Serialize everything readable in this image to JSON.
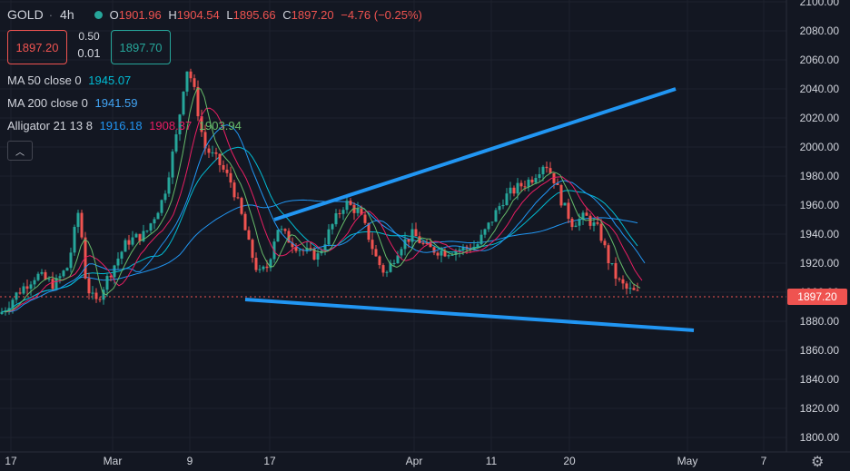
{
  "header": {
    "symbol": "GOLD",
    "timeframe": "4h",
    "open_label": "O",
    "open": "1901.96",
    "high_label": "H",
    "high": "1904.54",
    "low_label": "L",
    "low": "1895.66",
    "close_label": "C",
    "close": "1897.20",
    "change": "−4.76 (−0.25%)"
  },
  "trade": {
    "sell": "1897.20",
    "spread_top": "0.50",
    "spread_bottom": "0.01",
    "buy": "1897.70"
  },
  "indicators": [
    {
      "name": "MA 50 close 0",
      "values": [
        "1945.07"
      ],
      "colors": [
        "#00bcd4"
      ]
    },
    {
      "name": "MA 200 close 0",
      "values": [
        "1941.59"
      ],
      "colors": [
        "#42a5f5"
      ]
    },
    {
      "name": "Alligator 21 13 8",
      "values": [
        "1916.18",
        "1908.37",
        "1903.94"
      ],
      "colors": [
        "#2196f3",
        "#e91e63",
        "#66bb6a"
      ]
    }
  ],
  "price_axis": [
    "2100.00",
    "2080.00",
    "2060.00",
    "2040.00",
    "2020.00",
    "2000.00",
    "1980.00",
    "1960.00",
    "1940.00",
    "1920.00",
    "1900.00",
    "1880.00",
    "1860.00",
    "1840.00",
    "1820.00",
    "1800.00"
  ],
  "price_values": [
    2100,
    2080,
    2060,
    2040,
    2020,
    2000,
    1980,
    1960,
    1940,
    1920,
    1900,
    1880,
    1860,
    1840,
    1820,
    1800
  ],
  "current_price": "1897.20",
  "time_axis": [
    "17",
    "Mar",
    "9",
    "17",
    "Apr",
    "11",
    "20",
    "May",
    "7"
  ],
  "colors": {
    "up": "#26a69a",
    "down": "#ef5350",
    "trendline": "#2196f3",
    "background": "#131722"
  },
  "icons": {
    "settings": "gear-icon",
    "collapse": "chevron-up-icon"
  }
}
